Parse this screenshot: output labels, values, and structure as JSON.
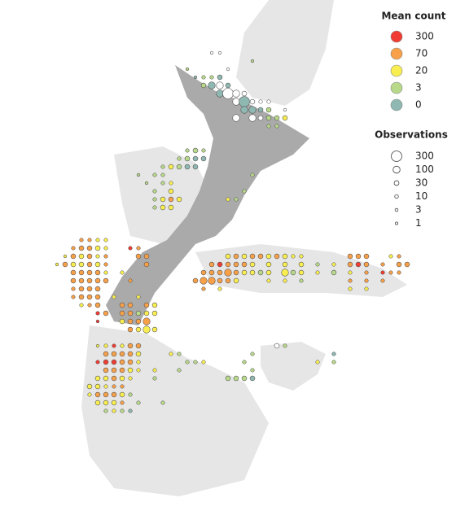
{
  "map": {
    "legend_mean": {
      "title": "Mean count",
      "items": [
        {
          "value": 300,
          "color": "#f03c32"
        },
        {
          "value": 70,
          "color": "#f7a048"
        },
        {
          "value": 20,
          "color": "#f8ee50"
        },
        {
          "value": 3,
          "color": "#b8d98a"
        },
        {
          "value": 0,
          "color": "#8fb8b2"
        }
      ]
    },
    "legend_obs": {
      "title": "Observations",
      "items": [
        300,
        100,
        30,
        10,
        3,
        1
      ]
    },
    "points": [
      [
        173.5,
        -34,
        null,
        3
      ],
      [
        174,
        -34,
        null,
        3
      ],
      [
        176,
        -34.5,
        3,
        3
      ],
      [
        172,
        -35,
        3,
        3
      ],
      [
        174.5,
        -35,
        null,
        3
      ],
      [
        172.5,
        -35.5,
        0,
        3
      ],
      [
        173,
        -35.5,
        3,
        10
      ],
      [
        173.5,
        -35.5,
        3,
        10
      ],
      [
        174,
        -35.5,
        0,
        30
      ],
      [
        173,
        -36,
        3,
        30
      ],
      [
        173.5,
        -36,
        0,
        100
      ],
      [
        174,
        -36,
        null,
        100
      ],
      [
        174.5,
        -36,
        0,
        30
      ],
      [
        174,
        -36.5,
        0,
        100
      ],
      [
        174.5,
        -36.5,
        null,
        300
      ],
      [
        175,
        -36.5,
        null,
        100
      ],
      [
        175.5,
        -36.5,
        null,
        30
      ],
      [
        175,
        -37,
        null,
        100
      ],
      [
        175.5,
        -37,
        0,
        300
      ],
      [
        176,
        -37,
        null,
        30
      ],
      [
        176.5,
        -37,
        null,
        10
      ],
      [
        177,
        -37,
        null,
        10
      ],
      [
        175.5,
        -37.5,
        0,
        100
      ],
      [
        176,
        -37.5,
        0,
        100
      ],
      [
        176.5,
        -37.5,
        0,
        30
      ],
      [
        177,
        -37.5,
        3,
        30
      ],
      [
        178,
        -37.5,
        null,
        3
      ],
      [
        175,
        -38,
        null,
        100
      ],
      [
        176,
        -38,
        null,
        100
      ],
      [
        176.5,
        -38,
        null,
        30
      ],
      [
        177,
        -38,
        3,
        30
      ],
      [
        177.5,
        -38,
        3,
        30
      ],
      [
        178,
        -38,
        20,
        30
      ],
      [
        177,
        -38.5,
        3,
        10
      ],
      [
        177.5,
        -38.5,
        3,
        10
      ],
      [
        172,
        -40,
        3,
        10
      ],
      [
        172.5,
        -40,
        3,
        30
      ],
      [
        173,
        -40,
        3,
        10
      ],
      [
        171.5,
        -40.5,
        3,
        10
      ],
      [
        172,
        -40.5,
        3,
        30
      ],
      [
        172.5,
        -40.5,
        0,
        30
      ],
      [
        173,
        -40.5,
        0,
        30
      ],
      [
        170.5,
        -41,
        3,
        10
      ],
      [
        171,
        -41,
        20,
        30
      ],
      [
        171.5,
        -41,
        3,
        30
      ],
      [
        172,
        -41,
        0,
        30
      ],
      [
        172.5,
        -41,
        0,
        30
      ],
      [
        169,
        -41.5,
        3,
        3
      ],
      [
        170,
        -41.5,
        3,
        10
      ],
      [
        170.5,
        -41.5,
        3,
        10
      ],
      [
        171,
        -42,
        20,
        10
      ],
      [
        170.5,
        -42,
        3,
        10
      ],
      [
        169.5,
        -42,
        3,
        3
      ],
      [
        171,
        -42.5,
        20,
        30
      ],
      [
        170,
        -42.5,
        3,
        10
      ],
      [
        170.5,
        -43,
        20,
        30
      ],
      [
        171,
        -43,
        70,
        30
      ],
      [
        171.5,
        -43,
        20,
        30
      ],
      [
        170,
        -43,
        3,
        10
      ],
      [
        170,
        -43.5,
        3,
        10
      ],
      [
        170.5,
        -43.5,
        20,
        30
      ],
      [
        171,
        -43.5,
        20,
        30
      ],
      [
        174.5,
        -43,
        20,
        10
      ],
      [
        175,
        -43,
        3,
        10
      ],
      [
        175.5,
        -42.5,
        3,
        10
      ],
      [
        176,
        -41.5,
        3,
        10
      ],
      [
        174.5,
        -46.5,
        20,
        30
      ],
      [
        175,
        -46.5,
        70,
        30
      ],
      [
        175.5,
        -46.5,
        20,
        30
      ],
      [
        176,
        -46.5,
        70,
        30
      ],
      [
        176.5,
        -46.5,
        70,
        30
      ],
      [
        177,
        -46.5,
        20,
        30
      ],
      [
        177.5,
        -46.5,
        70,
        30
      ],
      [
        178,
        -46.5,
        20,
        30
      ],
      [
        178.5,
        -46.5,
        20,
        10
      ],
      [
        179,
        -46.5,
        20,
        10
      ],
      [
        182,
        -46.5,
        70,
        30
      ],
      [
        182.5,
        -46.5,
        70,
        30
      ],
      [
        183,
        -46.5,
        70,
        30
      ],
      [
        184.5,
        -46.5,
        20,
        10
      ],
      [
        185,
        -46.5,
        70,
        10
      ],
      [
        173.5,
        -47,
        70,
        30
      ],
      [
        174,
        -47,
        300,
        30
      ],
      [
        174.5,
        -47,
        70,
        30
      ],
      [
        175,
        -47,
        70,
        30
      ],
      [
        175.5,
        -47,
        70,
        30
      ],
      [
        176,
        -47,
        20,
        30
      ],
      [
        177,
        -47,
        20,
        30
      ],
      [
        178,
        -47,
        20,
        30
      ],
      [
        179,
        -47,
        20,
        30
      ],
      [
        180,
        -47,
        3,
        10
      ],
      [
        181,
        -47,
        20,
        10
      ],
      [
        182,
        -47,
        70,
        30
      ],
      [
        182.5,
        -47,
        300,
        30
      ],
      [
        183,
        -47,
        70,
        30
      ],
      [
        184,
        -47,
        70,
        10
      ],
      [
        185,
        -47,
        70,
        30
      ],
      [
        185.5,
        -47,
        70,
        30
      ],
      [
        173,
        -47.5,
        70,
        30
      ],
      [
        173.5,
        -47.5,
        70,
        30
      ],
      [
        174,
        -47.5,
        70,
        30
      ],
      [
        174.5,
        -47.5,
        70,
        100
      ],
      [
        175,
        -47.5,
        70,
        30
      ],
      [
        175.5,
        -47.5,
        20,
        30
      ],
      [
        176,
        -47.5,
        20,
        30
      ],
      [
        176.5,
        -47.5,
        3,
        30
      ],
      [
        177,
        -47.5,
        20,
        30
      ],
      [
        178,
        -47.5,
        20,
        100
      ],
      [
        178.5,
        -47.5,
        3,
        30
      ],
      [
        179,
        -47.5,
        20,
        30
      ],
      [
        180,
        -47.5,
        20,
        10
      ],
      [
        181,
        -47.5,
        3,
        30
      ],
      [
        182,
        -47.5,
        20,
        10
      ],
      [
        183,
        -47.5,
        70,
        10
      ],
      [
        184,
        -47.5,
        300,
        10
      ],
      [
        184.5,
        -47.5,
        70,
        10
      ],
      [
        185,
        -47.5,
        70,
        10
      ],
      [
        172.5,
        -48,
        70,
        30
      ],
      [
        173,
        -48,
        70,
        100
      ],
      [
        173.5,
        -48,
        70,
        100
      ],
      [
        174,
        -48,
        70,
        30
      ],
      [
        174.5,
        -48,
        70,
        30
      ],
      [
        175,
        -48,
        20,
        30
      ],
      [
        177,
        -48,
        20,
        10
      ],
      [
        178,
        -48,
        20,
        10
      ],
      [
        179,
        -48,
        3,
        10
      ],
      [
        182,
        -48,
        70,
        10
      ],
      [
        183,
        -48,
        70,
        10
      ],
      [
        184,
        -48,
        70,
        10
      ],
      [
        173,
        -48.5,
        70,
        10
      ],
      [
        174,
        -48.5,
        20,
        10
      ],
      [
        182,
        -48.5,
        20,
        10
      ],
      [
        183,
        -48.5,
        20,
        10
      ],
      [
        165.5,
        -45.5,
        70,
        10
      ],
      [
        166,
        -45.5,
        70,
        10
      ],
      [
        166.5,
        -45.5,
        20,
        10
      ],
      [
        167,
        -45.5,
        20,
        10
      ],
      [
        165,
        -46,
        70,
        10
      ],
      [
        165.5,
        -46,
        70,
        30
      ],
      [
        166,
        -46,
        70,
        30
      ],
      [
        166.5,
        -46,
        20,
        30
      ],
      [
        167,
        -46,
        20,
        10
      ],
      [
        168.5,
        -46,
        300,
        10
      ],
      [
        169,
        -46,
        70,
        10
      ],
      [
        164.5,
        -46.5,
        20,
        3
      ],
      [
        165,
        -46.5,
        70,
        30
      ],
      [
        165.5,
        -46.5,
        20,
        30
      ],
      [
        166,
        -46.5,
        70,
        30
      ],
      [
        166.5,
        -46.5,
        20,
        10
      ],
      [
        167,
        -46.5,
        70,
        10
      ],
      [
        169,
        -46.5,
        70,
        30
      ],
      [
        169.5,
        -46.5,
        70,
        30
      ],
      [
        164,
        -47,
        20,
        3
      ],
      [
        164.5,
        -47,
        70,
        30
      ],
      [
        165,
        -47,
        20,
        30
      ],
      [
        165.5,
        -47,
        20,
        30
      ],
      [
        166,
        -47,
        70,
        30
      ],
      [
        166.5,
        -47,
        20,
        30
      ],
      [
        167,
        -47,
        70,
        10
      ],
      [
        169.5,
        -47,
        70,
        30
      ],
      [
        165,
        -47.5,
        70,
        30
      ],
      [
        165.5,
        -47.5,
        70,
        30
      ],
      [
        166,
        -47.5,
        70,
        30
      ],
      [
        166.5,
        -47.5,
        70,
        30
      ],
      [
        167,
        -47.5,
        20,
        10
      ],
      [
        168,
        -47.5,
        20,
        10
      ],
      [
        165,
        -48,
        70,
        30
      ],
      [
        165.5,
        -48,
        70,
        30
      ],
      [
        166,
        -48,
        70,
        30
      ],
      [
        166.5,
        -48,
        70,
        30
      ],
      [
        167,
        -48,
        70,
        30
      ],
      [
        168.5,
        -48,
        70,
        10
      ],
      [
        165,
        -48.5,
        70,
        10
      ],
      [
        165.5,
        -48.5,
        70,
        30
      ],
      [
        166,
        -48.5,
        70,
        30
      ],
      [
        166.5,
        -48.5,
        70,
        30
      ],
      [
        165,
        -49,
        70,
        10
      ],
      [
        165.5,
        -49,
        70,
        30
      ],
      [
        166,
        -49,
        70,
        30
      ],
      [
        166.5,
        -49,
        70,
        30
      ],
      [
        167.5,
        -49,
        20,
        10
      ],
      [
        169,
        -49,
        20,
        10
      ],
      [
        165.5,
        -49.5,
        20,
        10
      ],
      [
        166,
        -49.5,
        70,
        10
      ],
      [
        166.5,
        -49.5,
        70,
        30
      ],
      [
        168,
        -49.5,
        70,
        30
      ],
      [
        168.5,
        -49.5,
        70,
        30
      ],
      [
        169.5,
        -49.5,
        70,
        30
      ],
      [
        170,
        -49.5,
        20,
        30
      ],
      [
        166.5,
        -50,
        300,
        10
      ],
      [
        167,
        -50,
        70,
        30
      ],
      [
        168,
        -50,
        70,
        30
      ],
      [
        168.5,
        -50,
        70,
        30
      ],
      [
        169,
        -50,
        3,
        30
      ],
      [
        169.5,
        -50,
        20,
        30
      ],
      [
        170,
        -50,
        20,
        30
      ],
      [
        166.5,
        -50.5,
        300,
        3
      ],
      [
        168,
        -50.5,
        20,
        30
      ],
      [
        168.5,
        -50.5,
        70,
        30
      ],
      [
        169,
        -50.5,
        70,
        30
      ],
      [
        169.5,
        -50.5,
        70,
        100
      ],
      [
        168.5,
        -51,
        70,
        30
      ],
      [
        169,
        -51,
        20,
        30
      ],
      [
        169.5,
        -51,
        20,
        100
      ],
      [
        170,
        -51,
        20,
        30
      ],
      [
        166.5,
        -52,
        20,
        3
      ],
      [
        167,
        -52,
        20,
        10
      ],
      [
        167.5,
        -52,
        300,
        10
      ],
      [
        168,
        -52,
        20,
        10
      ],
      [
        168.5,
        -52,
        70,
        30
      ],
      [
        169,
        -52,
        70,
        30
      ],
      [
        167,
        -52.5,
        70,
        30
      ],
      [
        167.5,
        -52.5,
        70,
        30
      ],
      [
        168,
        -52.5,
        70,
        30
      ],
      [
        168.5,
        -52.5,
        70,
        30
      ],
      [
        169,
        -52.5,
        20,
        30
      ],
      [
        171,
        -52.5,
        20,
        10
      ],
      [
        171.5,
        -52.5,
        3,
        10
      ],
      [
        166.5,
        -53,
        300,
        10
      ],
      [
        167,
        -53,
        300,
        30
      ],
      [
        167.5,
        -53,
        300,
        30
      ],
      [
        168,
        -53,
        70,
        30
      ],
      [
        168.5,
        -53,
        70,
        30
      ],
      [
        169,
        -53,
        20,
        10
      ],
      [
        172,
        -53,
        3,
        10
      ],
      [
        172.5,
        -53,
        3,
        10
      ],
      [
        173,
        -53,
        20,
        10
      ],
      [
        167,
        -53.5,
        70,
        30
      ],
      [
        167.5,
        -53.5,
        70,
        30
      ],
      [
        168,
        -53.5,
        70,
        30
      ],
      [
        168.5,
        -53.5,
        20,
        30
      ],
      [
        169,
        -53.5,
        20,
        10
      ],
      [
        170,
        -53.5,
        20,
        10
      ],
      [
        171.5,
        -53.5,
        3,
        10
      ],
      [
        166.5,
        -54,
        20,
        30
      ],
      [
        167,
        -54,
        20,
        30
      ],
      [
        167.5,
        -54,
        70,
        30
      ],
      [
        168,
        -54,
        20,
        30
      ],
      [
        168.5,
        -54,
        20,
        10
      ],
      [
        170,
        -54,
        3,
        10
      ],
      [
        166,
        -54.5,
        20,
        30
      ],
      [
        166.5,
        -54.5,
        20,
        30
      ],
      [
        167,
        -54.5,
        20,
        10
      ],
      [
        167.5,
        -54.5,
        70,
        10
      ],
      [
        168,
        -54.5,
        70,
        10
      ],
      [
        166,
        -55,
        20,
        10
      ],
      [
        166.5,
        -55,
        70,
        30
      ],
      [
        167,
        -55,
        70,
        30
      ],
      [
        167.5,
        -55,
        70,
        30
      ],
      [
        168,
        -55,
        20,
        30
      ],
      [
        168.5,
        -55,
        3,
        10
      ],
      [
        166.5,
        -55.5,
        20,
        30
      ],
      [
        167,
        -55.5,
        20,
        30
      ],
      [
        167.5,
        -55.5,
        20,
        30
      ],
      [
        168,
        -55.5,
        70,
        10
      ],
      [
        169,
        -55.5,
        3,
        10
      ],
      [
        170.5,
        -55.5,
        3,
        10
      ],
      [
        167,
        -56,
        3,
        10
      ],
      [
        167.5,
        -56,
        20,
        10
      ],
      [
        168,
        -56,
        3,
        10
      ],
      [
        168.5,
        -56,
        0,
        10
      ],
      [
        174.5,
        -54,
        3,
        30
      ],
      [
        175,
        -54,
        3,
        30
      ],
      [
        175.5,
        -54,
        3,
        30
      ],
      [
        176,
        -54,
        0,
        30
      ],
      [
        175.5,
        -53,
        3,
        10
      ],
      [
        176,
        -53.5,
        3,
        10
      ],
      [
        176,
        -52.5,
        3,
        10
      ],
      [
        177.5,
        -52,
        null,
        30
      ],
      [
        178,
        -52,
        3,
        10
      ],
      [
        181,
        -52.5,
        0,
        10
      ],
      [
        181,
        -53,
        3,
        10
      ],
      [
        180,
        -53,
        20,
        10
      ]
    ]
  }
}
